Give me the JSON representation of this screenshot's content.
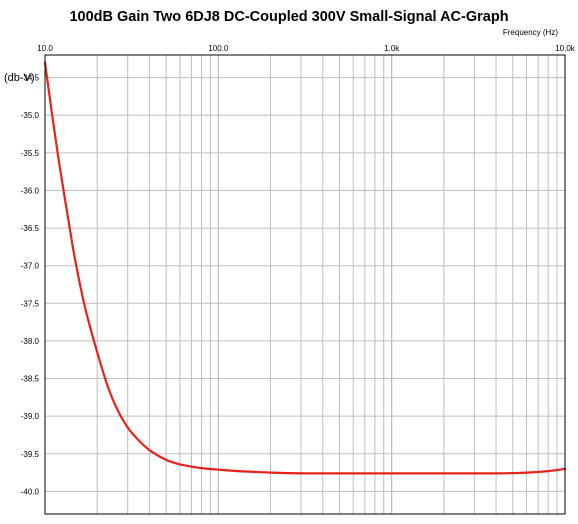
{
  "chart_data": {
    "type": "line",
    "title": "100dB Gain Two 6DJ8 DC-Coupled 300V Small-Signal AC-Graph",
    "xlabel": "Frequency   (Hz)",
    "ylabel": "(db-V)",
    "x_scale": "log",
    "xlim": [
      10,
      10000
    ],
    "ylim": [
      -40.3,
      -34.2
    ],
    "x_ticks": [
      10,
      100,
      1000,
      10000
    ],
    "x_tick_labels": [
      "10.0",
      "100.0",
      "1.0k",
      "10.0k"
    ],
    "y_ticks": [
      -34.5,
      -35.0,
      -35.5,
      -36.0,
      -36.5,
      -37.0,
      -37.5,
      -38.0,
      -38.5,
      -39.0,
      -39.5,
      -40.0
    ],
    "y_tick_labels": [
      "-34.5",
      "-35.0",
      "-35.5",
      "-36.0",
      "-36.5",
      "-37.0",
      "-37.5",
      "-38.0",
      "-38.5",
      "-39.0",
      "-39.5",
      "-40.0"
    ],
    "grid": true,
    "colors": {
      "series": "#e8221a",
      "grid": "#bdbdbd",
      "axis": "#000000"
    },
    "series": [
      {
        "x": [
          10,
          11,
          12,
          13,
          14,
          15,
          17,
          20,
          23,
          26,
          30,
          35,
          40,
          50,
          60,
          70,
          80,
          100,
          130,
          160,
          200,
          300,
          500,
          1000,
          2000,
          4000,
          6000,
          8000,
          10000
        ],
        "values": [
          -34.3,
          -35.0,
          -35.6,
          -36.1,
          -36.55,
          -36.95,
          -37.55,
          -38.15,
          -38.6,
          -38.9,
          -39.15,
          -39.33,
          -39.45,
          -39.58,
          -39.64,
          -39.67,
          -39.69,
          -39.71,
          -39.73,
          -39.74,
          -39.75,
          -39.76,
          -39.76,
          -39.76,
          -39.76,
          -39.76,
          -39.75,
          -39.73,
          -39.7
        ]
      }
    ]
  }
}
